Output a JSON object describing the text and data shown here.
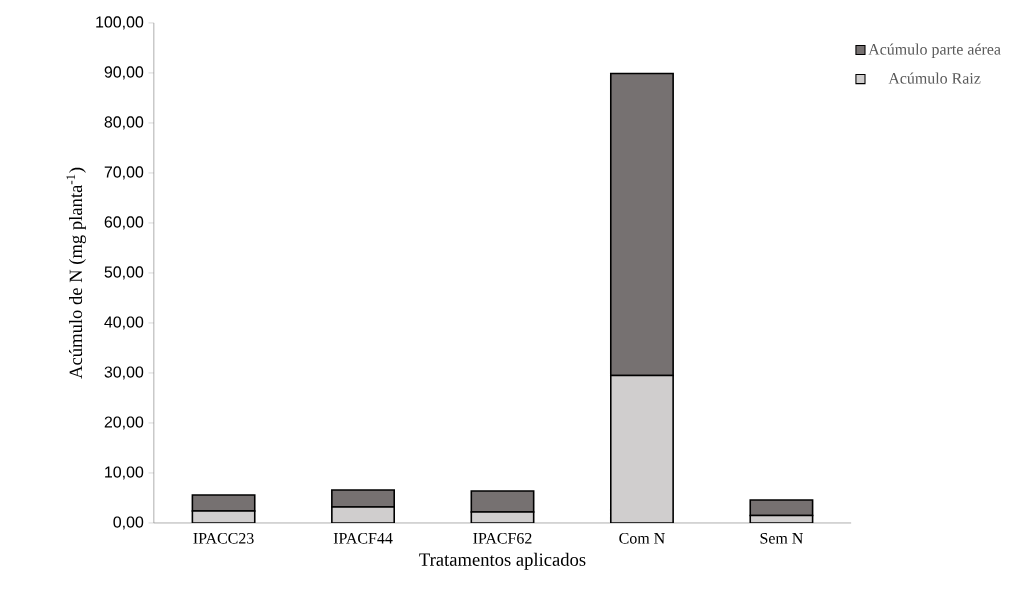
{
  "chart_data": {
    "type": "bar",
    "stacked": true,
    "xlabel": "Tratamentos aplicados",
    "ylabel": "Acúmulo de N (mg planta$^{-1}$)",
    "categories": [
      "IPACC23",
      "IPACF44",
      "IPACF62",
      "Com N",
      "Sem N"
    ],
    "series": [
      {
        "name": "Acúmulo Raiz",
        "color": "#d0cece",
        "values": [
          2.4,
          3.2,
          2.2,
          29.5,
          1.5
        ]
      },
      {
        "name": "Acúmulo parte aérea",
        "color": "#767171",
        "values": [
          3.2,
          3.4,
          4.2,
          60.4,
          3.1
        ]
      }
    ],
    "ylim": [
      0,
      100
    ],
    "yticks": [
      {
        "value": 0,
        "label": "0,00"
      },
      {
        "value": 10,
        "label": "10,00"
      },
      {
        "value": 20,
        "label": "20,00"
      },
      {
        "value": 30,
        "label": "30,00"
      },
      {
        "value": 40,
        "label": "40,00"
      },
      {
        "value": 50,
        "label": "50,00"
      },
      {
        "value": 60,
        "label": "60,00"
      },
      {
        "value": 70,
        "label": "70,00"
      },
      {
        "value": 80,
        "label": "80,00"
      },
      {
        "value": 90,
        "label": "90,00"
      },
      {
        "value": 100,
        "label": "100,00"
      }
    ],
    "legend": "top right",
    "grid": false
  }
}
